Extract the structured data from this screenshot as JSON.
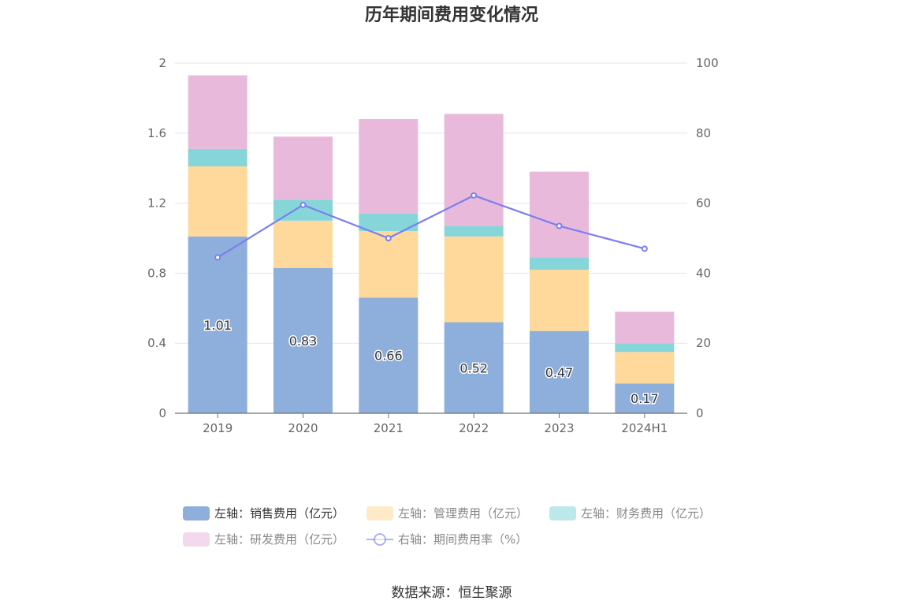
{
  "chart_data": {
    "type": "bar",
    "stacked": true,
    "title": "历年期间费用变化情况",
    "categories": [
      "2019",
      "2020",
      "2021",
      "2022",
      "2023",
      "2024H1"
    ],
    "y_left": {
      "ylim": [
        0,
        2
      ],
      "ticks": [
        "0",
        "0.4",
        "0.8",
        "1.2",
        "1.6",
        "2"
      ]
    },
    "y_right": {
      "ylim": [
        0,
        100
      ],
      "ticks": [
        "0",
        "20",
        "40",
        "60",
        "80",
        "100"
      ]
    },
    "series": [
      {
        "name": "左轴：销售费用（亿元）",
        "axis": "left",
        "type": "bar",
        "color": "#8eaedb",
        "values": [
          1.01,
          0.83,
          0.66,
          0.52,
          0.47,
          0.17
        ],
        "labels": [
          "1.01",
          "0.83",
          "0.66",
          "0.52",
          "0.47",
          "0.17"
        ]
      },
      {
        "name": "左轴：管理费用（亿元）",
        "axis": "left",
        "type": "bar",
        "color": "#fed99b",
        "values": [
          0.4,
          0.27,
          0.38,
          0.49,
          0.35,
          0.18
        ]
      },
      {
        "name": "左轴：财务费用（亿元）",
        "axis": "left",
        "type": "bar",
        "color": "#86d5d9",
        "values": [
          0.1,
          0.12,
          0.1,
          0.06,
          0.07,
          0.05
        ]
      },
      {
        "name": "左轴：研发费用（亿元）",
        "axis": "left",
        "type": "bar",
        "color": "#e8b9db",
        "values": [
          0.42,
          0.36,
          0.54,
          0.64,
          0.49,
          0.18
        ]
      },
      {
        "name": "右轴：期间费用率（%）",
        "axis": "right",
        "type": "line",
        "color": "#7b7ff0",
        "values": [
          44.5,
          59.5,
          50.0,
          62.2,
          53.5,
          47.0
        ]
      }
    ],
    "legend_position": "bottom",
    "grid": true
  },
  "source": "数据来源：恒生聚源"
}
